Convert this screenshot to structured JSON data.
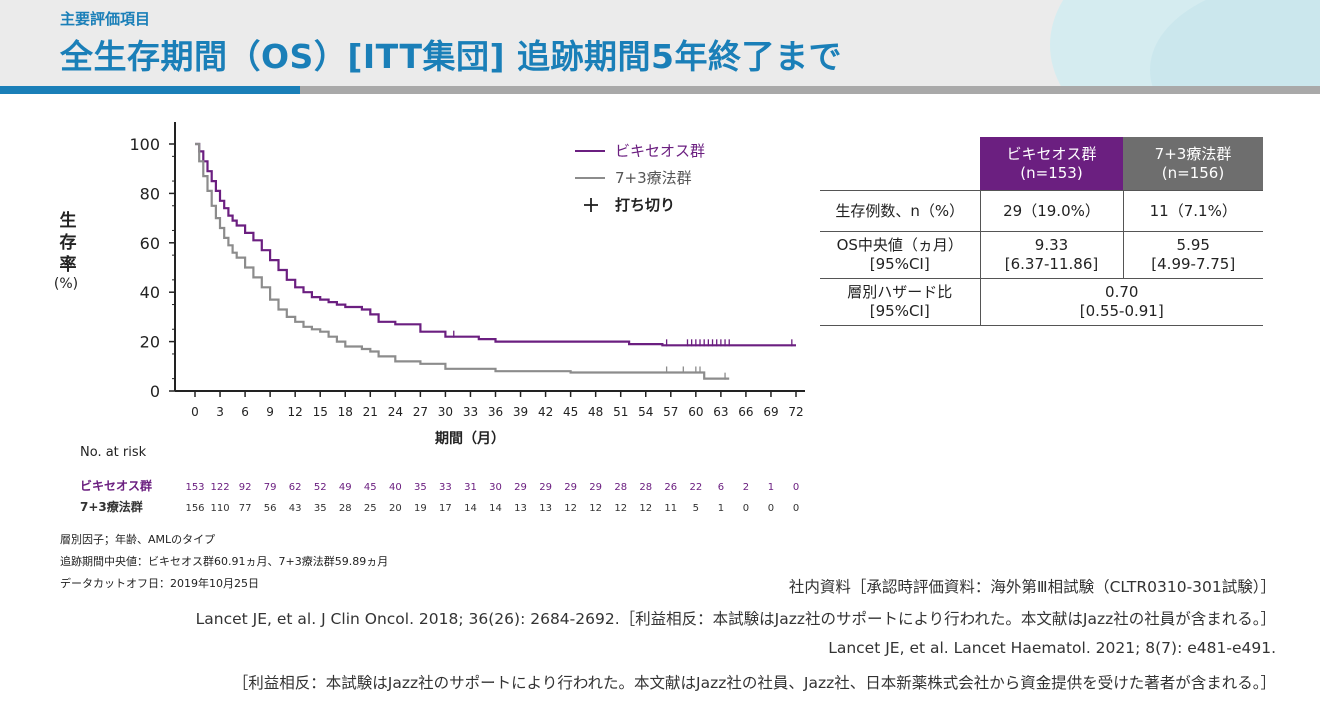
{
  "header": {
    "subtitle": "主要評価項目",
    "title": "全生存期間（OS）[ITT集団] 追跡期間5年終了まで"
  },
  "colors": {
    "brand": "#1a7fb8",
    "bexi": "#6b1f80",
    "standard": "#8c8c8c",
    "standard_header": "#6e6e6e"
  },
  "chart_data": {
    "type": "line",
    "subtype": "kaplan-meier",
    "ylabel": [
      "生",
      "存",
      "率"
    ],
    "ylabel_unit": "(%)",
    "xlabel": "期間（月）",
    "xlim": [
      0,
      72
    ],
    "ylim": [
      0,
      100
    ],
    "xticks": [
      0,
      3,
      6,
      9,
      12,
      15,
      18,
      21,
      24,
      27,
      30,
      33,
      36,
      39,
      42,
      45,
      48,
      51,
      54,
      57,
      60,
      63,
      66,
      69,
      72
    ],
    "yticks": [
      0,
      20,
      40,
      60,
      80,
      100
    ],
    "legend": {
      "placement": "top-right",
      "items": [
        "ビキセオス群",
        "7+3療法群",
        "打ち切り"
      ]
    },
    "series": [
      {
        "name": "ビキセオス群",
        "color": "#6b1f80",
        "x": [
          0,
          0.5,
          1,
          1.5,
          2,
          2.5,
          3,
          3.5,
          4,
          4.5,
          5,
          6,
          7,
          8,
          9,
          10,
          11,
          12,
          13,
          14,
          15,
          16,
          17,
          18,
          19,
          20,
          21,
          22,
          24,
          27,
          30,
          32,
          34,
          36,
          38,
          40,
          45,
          50,
          52,
          54,
          56,
          64,
          72
        ],
        "y": [
          100,
          97,
          93,
          89,
          85,
          81,
          77,
          74,
          71,
          69,
          67,
          64,
          61,
          57,
          53,
          49,
          45,
          42,
          40,
          38,
          37,
          36,
          35,
          34,
          34,
          33,
          31,
          28,
          27,
          24,
          22,
          22,
          21,
          20,
          20,
          20,
          20,
          20,
          19,
          19,
          18.5,
          18.5,
          18.5
        ]
      },
      {
        "name": "7+3療法群",
        "color": "#8c8c8c",
        "x": [
          0,
          0.5,
          1,
          1.5,
          2,
          2.5,
          3,
          3.5,
          4,
          4.5,
          5,
          6,
          7,
          8,
          9,
          10,
          11,
          12,
          13,
          14,
          15,
          16,
          17,
          18,
          19,
          20,
          21,
          22,
          24,
          27,
          30,
          32,
          36,
          42,
          45,
          50,
          56,
          60,
          61,
          64
        ],
        "y": [
          100,
          93,
          87,
          81,
          75,
          70,
          66,
          62,
          59,
          56,
          54,
          50,
          46,
          42,
          37,
          33,
          30,
          28,
          26,
          25,
          24,
          22,
          20,
          18,
          18,
          17,
          16,
          14,
          12,
          11,
          9,
          9,
          8,
          8,
          7.5,
          7.5,
          7.5,
          7.5,
          5,
          5
        ]
      }
    ],
    "censor_marks": [
      {
        "series": "ビキセオス群",
        "x": [
          31,
          56.5,
          59,
          59.5,
          60,
          60.5,
          61,
          61.5,
          62,
          62.5,
          63,
          63.5,
          64,
          71.5
        ],
        "y": [
          22,
          18.5,
          18.5,
          18.5,
          18.5,
          18.5,
          18.5,
          18.5,
          18.5,
          18.5,
          18.5,
          18.5,
          18.5,
          18.5
        ]
      },
      {
        "series": "7+3療法群",
        "x": [
          56.5,
          58.5,
          60,
          60.5,
          63.5
        ],
        "y": [
          7.5,
          7.5,
          7.5,
          7.5,
          5
        ]
      }
    ],
    "risk_table": {
      "title": "No. at risk",
      "rows": [
        {
          "label": "ビキセオス群",
          "values": [
            "153",
            "122",
            "92",
            "79",
            "62",
            "52",
            "49",
            "45",
            "40",
            "35",
            "33",
            "31",
            "30",
            "29",
            "29",
            "29",
            "29",
            "28",
            "28",
            "26",
            "22",
            "6",
            "2",
            "1",
            "0"
          ]
        },
        {
          "label": "7+3療法群",
          "values": [
            "156",
            "110",
            "77",
            "56",
            "43",
            "35",
            "28",
            "25",
            "20",
            "19",
            "17",
            "14",
            "14",
            "13",
            "13",
            "12",
            "12",
            "12",
            "12",
            "11",
            "5",
            "1",
            "0",
            "0",
            "0"
          ]
        }
      ]
    }
  },
  "summary_table": {
    "headers": [
      {
        "line1": "ビキセオス群",
        "line2": "(n=153)"
      },
      {
        "line1": "7+3療法群",
        "line2": "(n=156)"
      }
    ],
    "rows": [
      {
        "label1": "生存例数、n（%）",
        "label2": "",
        "v1a": "29（19.0%）",
        "v1b": "",
        "v2a": "11（7.1%）",
        "v2b": ""
      },
      {
        "label1": "OS中央値（ヵ月）",
        "label2": "[95%CI]",
        "v1a": "9.33",
        "v1b": "[6.37-11.86]",
        "v2a": "5.95",
        "v2b": "[4.99-7.75]"
      },
      {
        "label1": "層別ハザード比",
        "label2": "[95%CI]",
        "va": "0.70",
        "vb": "[0.55-0.91]"
      }
    ]
  },
  "notes": [
    "層別因子；年齢、AMLのタイプ",
    "追跡期間中央値：ビキセオス群60.91ヵ月、7+3療法群59.89ヵ月",
    "データカットオフ日：2019年10月25日"
  ],
  "references": [
    "社内資料［承認時評価資料：海外第Ⅲ相試験（CLTR0310-301試験）］",
    "Lancet JE, et al. J Clin Oncol. 2018; 36(26): 2684-2692.［利益相反：本試験はJazz社のサポートにより行われた。本文献はJazz社の社員が含まれる。］",
    "Lancet JE, et al. Lancet Haematol. 2021; 8(7): e481-e491.",
    "［利益相反：本試験はJazz社のサポートにより行われた。本文献はJazz社の社員、Jazz社、日本新薬株式会社から資金提供を受けた著者が含まれる。］"
  ]
}
